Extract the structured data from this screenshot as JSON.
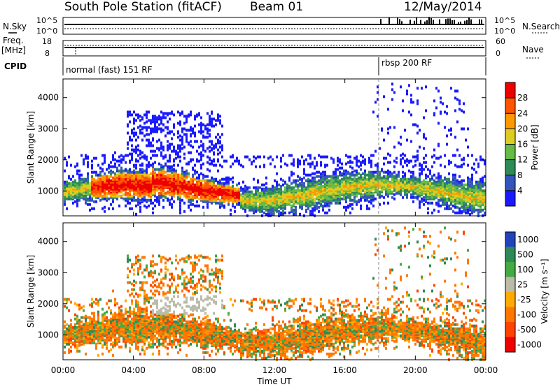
{
  "header": {
    "station": "South Pole Station (fitACF)",
    "beam": "Beam 01",
    "date": "12/May/2014"
  },
  "top_panels": {
    "nsky_label": "N.Sky",
    "nsearch_label": "N.Search",
    "left_ticks": [
      "10^5",
      "10^0"
    ],
    "right_ticks": [
      "10^5",
      "10^0"
    ],
    "freq_label": "Freq.",
    "freq_unit": "[MHz]",
    "freq_ticks": [
      "18",
      "8"
    ],
    "nave_label": "Nave",
    "nave_ticks": [
      "60",
      "0"
    ],
    "cpid_label": "CPID",
    "cpid_modes": [
      "normal (fast) 151 RF",
      "rbsp 200 RF"
    ]
  },
  "chart_data": [
    {
      "type": "heatmap",
      "name": "power",
      "ylabel": "Slant Range [km]",
      "yticks": [
        "1000",
        "2000",
        "3000",
        "4000"
      ],
      "ylim": [
        200,
        4600
      ],
      "colorbar_label": "Power [dB]",
      "colorbar_ticks": [
        "4",
        "8",
        "12",
        "16",
        "20",
        "24",
        "28"
      ],
      "colors": [
        "#1a1aff",
        "#3355bb",
        "#2e8b57",
        "#66bb44",
        "#ddcc22",
        "#ff9900",
        "#ff5500",
        "#ee0000"
      ]
    },
    {
      "type": "heatmap",
      "name": "velocity",
      "ylabel": "Slant Range [km]",
      "yticks": [
        "1000",
        "2000",
        "3000",
        "4000"
      ],
      "ylim": [
        200,
        4600
      ],
      "colorbar_label": "Velocity [m s⁻¹]",
      "colorbar_ticks": [
        "1000",
        "500",
        "100",
        "25",
        "-25",
        "-100",
        "-500",
        "-1000"
      ],
      "colors": [
        "#2244bb",
        "#2e8b57",
        "#44aa44",
        "#bbbbaa",
        "#ffaa00",
        "#ff7700",
        "#ff4400",
        "#ee0000"
      ]
    }
  ],
  "xaxis": {
    "label": "Time UT",
    "ticks": [
      "00:00",
      "04:00",
      "08:00",
      "12:00",
      "16:00",
      "20:00",
      "00:00"
    ]
  }
}
